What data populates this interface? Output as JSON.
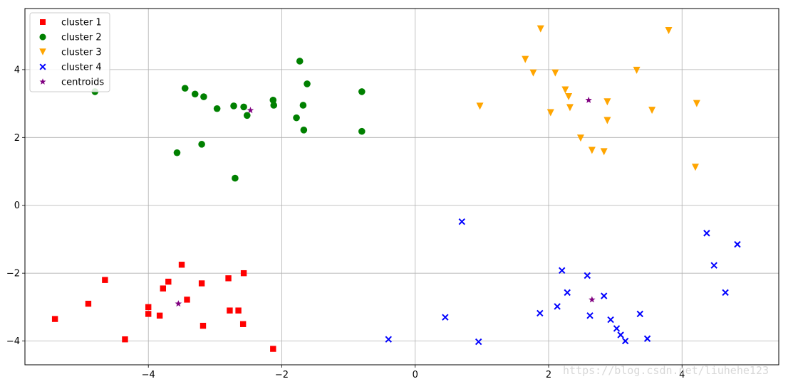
{
  "watermark": "https://blog.csdn.net/liuhehe123",
  "chart_data": {
    "type": "scatter",
    "xlim": [
      -5.85,
      5.45
    ],
    "ylim": [
      -4.7,
      5.8
    ],
    "xticks": [
      -4,
      -2,
      0,
      2,
      4
    ],
    "yticks": [
      -4,
      -2,
      0,
      2,
      4
    ],
    "grid": true,
    "legend_position": "top-left",
    "series": [
      {
        "name": "cluster 1",
        "marker": "square",
        "color": "#ff0000",
        "points": [
          [
            -5.4,
            -3.35
          ],
          [
            -4.9,
            -2.9
          ],
          [
            -4.65,
            -2.2
          ],
          [
            -4.35,
            -3.95
          ],
          [
            -4.0,
            -3.0
          ],
          [
            -4.0,
            -3.2
          ],
          [
            -3.83,
            -3.25
          ],
          [
            -3.78,
            -2.45
          ],
          [
            -3.7,
            -2.25
          ],
          [
            -3.5,
            -1.75
          ],
          [
            -3.42,
            -2.78
          ],
          [
            -3.2,
            -2.3
          ],
          [
            -3.18,
            -3.55
          ],
          [
            -2.8,
            -2.15
          ],
          [
            -2.78,
            -3.1
          ],
          [
            -2.65,
            -3.1
          ],
          [
            -2.58,
            -3.5
          ],
          [
            -2.57,
            -2.0
          ],
          [
            -2.13,
            -4.23
          ]
        ]
      },
      {
        "name": "cluster 2",
        "marker": "circle",
        "color": "#008000",
        "points": [
          [
            -4.8,
            3.35
          ],
          [
            -3.57,
            1.55
          ],
          [
            -3.45,
            3.45
          ],
          [
            -3.3,
            3.28
          ],
          [
            -3.2,
            1.8
          ],
          [
            -3.17,
            3.2
          ],
          [
            -2.97,
            2.85
          ],
          [
            -2.72,
            2.93
          ],
          [
            -2.7,
            0.8
          ],
          [
            -2.57,
            2.9
          ],
          [
            -2.52,
            2.65
          ],
          [
            -2.13,
            3.1
          ],
          [
            -2.12,
            2.95
          ],
          [
            -1.78,
            2.58
          ],
          [
            -1.73,
            4.25
          ],
          [
            -1.68,
            2.95
          ],
          [
            -1.67,
            2.22
          ],
          [
            -1.62,
            3.58
          ],
          [
            -0.8,
            3.35
          ],
          [
            -0.8,
            2.18
          ]
        ]
      },
      {
        "name": "cluster 3",
        "marker": "triangle-down",
        "color": "#ffa500",
        "points": [
          [
            0.97,
            2.92
          ],
          [
            1.65,
            4.3
          ],
          [
            1.77,
            3.9
          ],
          [
            1.88,
            5.2
          ],
          [
            2.03,
            2.73
          ],
          [
            2.1,
            3.9
          ],
          [
            2.25,
            3.4
          ],
          [
            2.3,
            3.2
          ],
          [
            2.32,
            2.88
          ],
          [
            2.48,
            1.98
          ],
          [
            2.65,
            1.62
          ],
          [
            2.83,
            1.58
          ],
          [
            2.88,
            3.05
          ],
          [
            2.88,
            2.5
          ],
          [
            3.32,
            3.98
          ],
          [
            3.55,
            2.8
          ],
          [
            3.8,
            5.15
          ],
          [
            4.2,
            1.12
          ],
          [
            4.22,
            3.0
          ]
        ]
      },
      {
        "name": "cluster 4",
        "marker": "x",
        "color": "#0000ff",
        "points": [
          [
            -0.4,
            -3.95
          ],
          [
            0.45,
            -3.3
          ],
          [
            0.7,
            -0.48
          ],
          [
            0.95,
            -4.02
          ],
          [
            1.87,
            -3.18
          ],
          [
            2.13,
            -2.98
          ],
          [
            2.2,
            -1.92
          ],
          [
            2.28,
            -2.57
          ],
          [
            2.58,
            -2.07
          ],
          [
            2.62,
            -3.25
          ],
          [
            2.83,
            -2.67
          ],
          [
            2.93,
            -3.37
          ],
          [
            3.02,
            -3.63
          ],
          [
            3.08,
            -3.82
          ],
          [
            3.15,
            -4.0
          ],
          [
            3.37,
            -3.2
          ],
          [
            3.48,
            -3.93
          ],
          [
            4.37,
            -0.82
          ],
          [
            4.48,
            -1.77
          ],
          [
            4.65,
            -2.57
          ],
          [
            4.83,
            -1.15
          ]
        ]
      },
      {
        "name": "centroids",
        "marker": "star",
        "color": "#800080",
        "points": [
          [
            -3.55,
            -2.9
          ],
          [
            -2.47,
            2.8
          ],
          [
            2.6,
            3.1
          ],
          [
            2.65,
            -2.78
          ]
        ]
      }
    ]
  }
}
